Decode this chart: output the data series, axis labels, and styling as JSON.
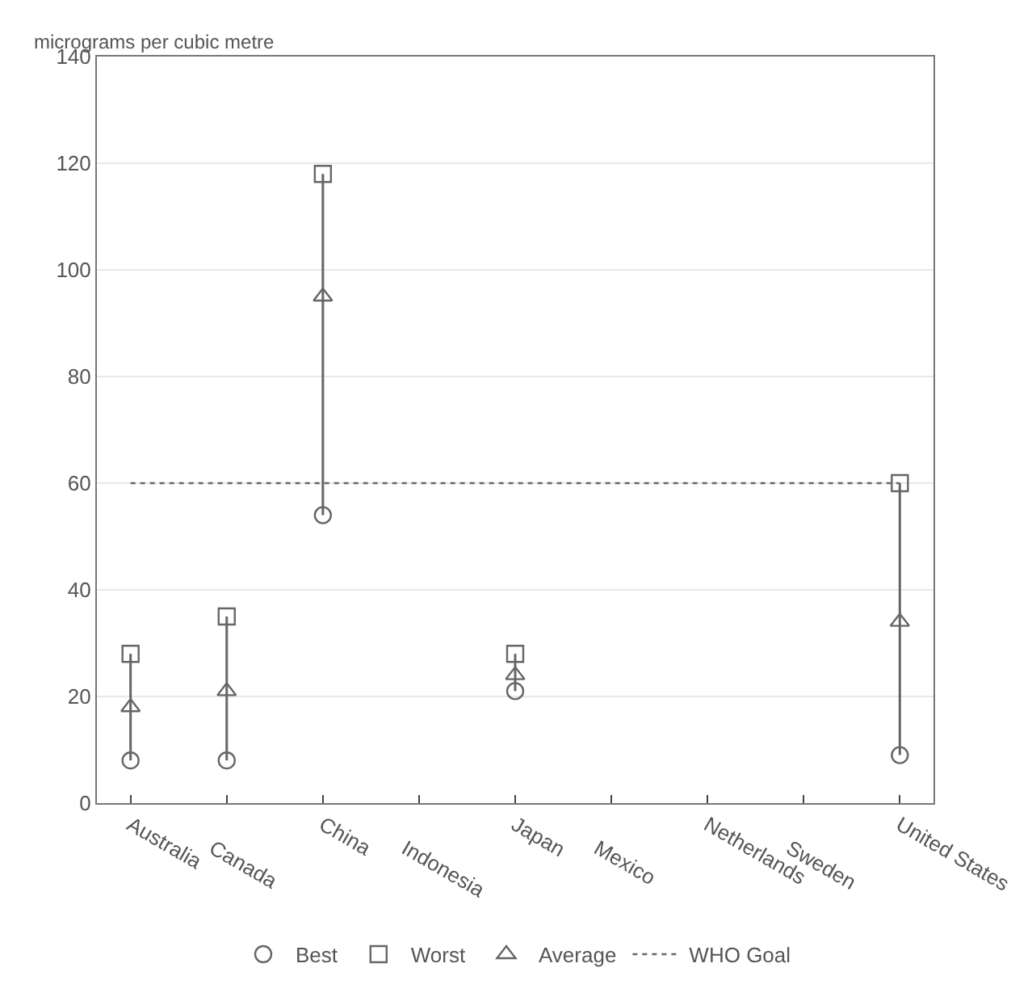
{
  "chart_data": {
    "type": "scatter",
    "ylabel": "micrograms per cubic metre",
    "categories": [
      "Australia",
      "Canada",
      "China",
      "Indonesia",
      "Japan",
      "Mexico",
      "Netherlands",
      "Sweden",
      "United States"
    ],
    "series": [
      {
        "name": "Best",
        "color": "#666666",
        "marker": "circle",
        "values": [
          8,
          8,
          54,
          null,
          21,
          null,
          null,
          null,
          9
        ]
      },
      {
        "name": "Worst",
        "color": "#666666",
        "marker": "square",
        "values": [
          28,
          35,
          118,
          null,
          28,
          null,
          null,
          null,
          60
        ]
      },
      {
        "name": "Average",
        "color": "#666666",
        "marker": "triangle",
        "values": [
          18,
          21,
          95,
          null,
          24,
          null,
          null,
          null,
          34
        ]
      }
    ],
    "ref_lines": [
      {
        "axis": "y",
        "value": 60,
        "label": "WHO Goal",
        "color": "#666666",
        "line_style": "dotted"
      }
    ],
    "ylim": [
      0,
      140
    ],
    "yticks": [
      0,
      20,
      40,
      60,
      80,
      100,
      120,
      140
    ],
    "grid": "y",
    "legend": "bottom"
  }
}
